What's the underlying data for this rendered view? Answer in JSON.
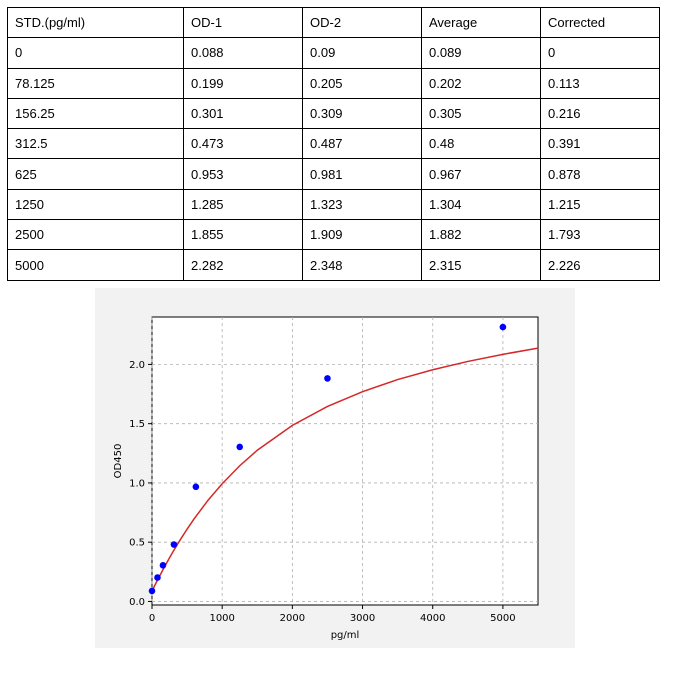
{
  "table": {
    "headers": [
      "STD.(pg/ml)",
      "OD-1",
      "OD-2",
      "Average",
      "Corrected"
    ],
    "rows": [
      [
        "0",
        "0.088",
        "0.09",
        "0.089",
        "0"
      ],
      [
        "78.125",
        "0.199",
        "0.205",
        "0.202",
        "0.113"
      ],
      [
        "156.25",
        "0.301",
        "0.309",
        "0.305",
        "0.216"
      ],
      [
        "312.5",
        "0.473",
        "0.487",
        "0.48",
        "0.391"
      ],
      [
        "625",
        "0.953",
        "0.981",
        "0.967",
        "0.878"
      ],
      [
        "1250",
        "1.285",
        "1.323",
        "1.304",
        "1.215"
      ],
      [
        "2500",
        "1.855",
        "1.909",
        "1.882",
        "1.793"
      ],
      [
        "5000",
        "2.282",
        "2.348",
        "2.315",
        "2.226"
      ]
    ]
  },
  "chart_data": {
    "type": "scatter",
    "title": "",
    "xlabel": "pg/ml",
    "ylabel": "OD450",
    "xlim": [
      0,
      5500
    ],
    "ylim": [
      -0.03,
      2.4
    ],
    "xticks": [
      "0",
      "1000",
      "2000",
      "3000",
      "4000",
      "5000"
    ],
    "yticks": [
      "0.0",
      "0.5",
      "1.0",
      "1.5",
      "2.0"
    ],
    "grid": true,
    "points": {
      "x": [
        0,
        78.125,
        156.25,
        312.5,
        625,
        1250,
        2500,
        5000
      ],
      "y": [
        0.089,
        0.202,
        0.305,
        0.48,
        0.967,
        1.304,
        1.882,
        2.315
      ],
      "color": "#0000ff"
    },
    "fit_curve": {
      "type": "line",
      "color": "#d62728",
      "x": [
        0,
        100,
        200,
        300,
        400,
        500,
        600,
        800,
        1000,
        1250,
        1500,
        2000,
        2500,
        3000,
        3500,
        4000,
        4500,
        5000,
        5500
      ],
      "y": [
        0.089,
        0.205,
        0.316,
        0.42,
        0.518,
        0.61,
        0.697,
        0.855,
        0.993,
        1.145,
        1.276,
        1.486,
        1.645,
        1.77,
        1.872,
        1.955,
        2.025,
        2.085,
        2.137
      ]
    }
  }
}
